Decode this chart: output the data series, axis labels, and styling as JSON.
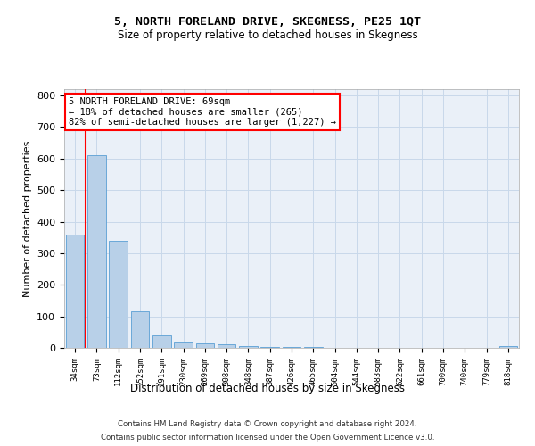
{
  "title": "5, NORTH FORELAND DRIVE, SKEGNESS, PE25 1QT",
  "subtitle": "Size of property relative to detached houses in Skegness",
  "xlabel": "Distribution of detached houses by size in Skegness",
  "ylabel": "Number of detached properties",
  "bin_labels": [
    "34sqm",
    "73sqm",
    "112sqm",
    "152sqm",
    "191sqm",
    "230sqm",
    "269sqm",
    "308sqm",
    "348sqm",
    "387sqm",
    "426sqm",
    "465sqm",
    "504sqm",
    "544sqm",
    "583sqm",
    "622sqm",
    "661sqm",
    "700sqm",
    "740sqm",
    "779sqm",
    "818sqm"
  ],
  "bar_heights": [
    360,
    610,
    340,
    115,
    40,
    20,
    15,
    10,
    5,
    3,
    2,
    2,
    0,
    0,
    0,
    0,
    0,
    0,
    0,
    0,
    5
  ],
  "bar_color": "#b8d0e8",
  "bar_edgecolor": "#5a9fd4",
  "annotation_text": "5 NORTH FORELAND DRIVE: 69sqm\n← 18% of detached houses are smaller (265)\n82% of semi-detached houses are larger (1,227) →",
  "annotation_box_color": "white",
  "annotation_box_edgecolor": "red",
  "vline_color": "red",
  "vline_x": 0.48,
  "ylim": [
    0,
    820
  ],
  "yticks": [
    0,
    100,
    200,
    300,
    400,
    500,
    600,
    700,
    800
  ],
  "grid_color": "#c8d8ea",
  "background_color": "#eaf0f8",
  "footer_line1": "Contains HM Land Registry data © Crown copyright and database right 2024.",
  "footer_line2": "Contains public sector information licensed under the Open Government Licence v3.0.",
  "title_fontsize": 9.5,
  "subtitle_fontsize": 8.5
}
